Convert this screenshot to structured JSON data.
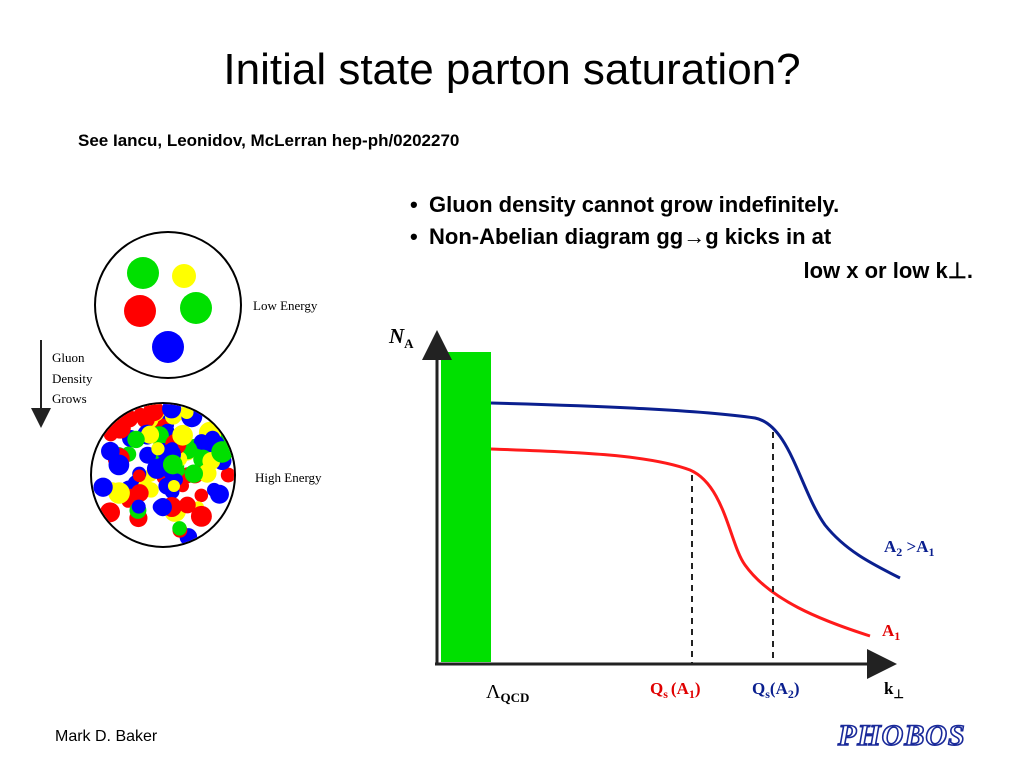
{
  "slide": {
    "title": "Initial state parton saturation?",
    "reference": "See Iancu, Leonidov, McLerran  hep-ph/0202270",
    "bullets": [
      {
        "lines": [
          "Gluon density cannot grow indefinitely."
        ]
      },
      {
        "lines": [
          "Non-Abelian diagram gg→g kicks in at",
          "low x or low k⊥."
        ]
      }
    ],
    "left_diagram": {
      "top_label": "Low Energy",
      "arrow_label": [
        "Gluon",
        "Density",
        "Grows"
      ],
      "bottom_label": "High Energy"
    },
    "graph": {
      "y_axis": {
        "symbol": "N",
        "sub": "A"
      },
      "x_axis": {
        "symbol": "k",
        "sub": "⊥"
      },
      "lambda": {
        "symbol": "Λ",
        "sub": "QCD"
      },
      "qs1": {
        "symbol": "Q",
        "sub": "s",
        "arg": "(A",
        "argsub": "1",
        "close": ")"
      },
      "qs2": {
        "symbol": "Q",
        "sub": "s",
        "arg": "(A",
        "argsub": "2",
        "close": ")"
      },
      "curve_upper": {
        "name": "A",
        "sub": "2",
        "rest": " >A",
        "restsub": "1"
      },
      "curve_lower": {
        "name": "A",
        "sub": "1"
      }
    },
    "footer": "Mark D. Baker",
    "logo": "PHOBOS"
  }
}
